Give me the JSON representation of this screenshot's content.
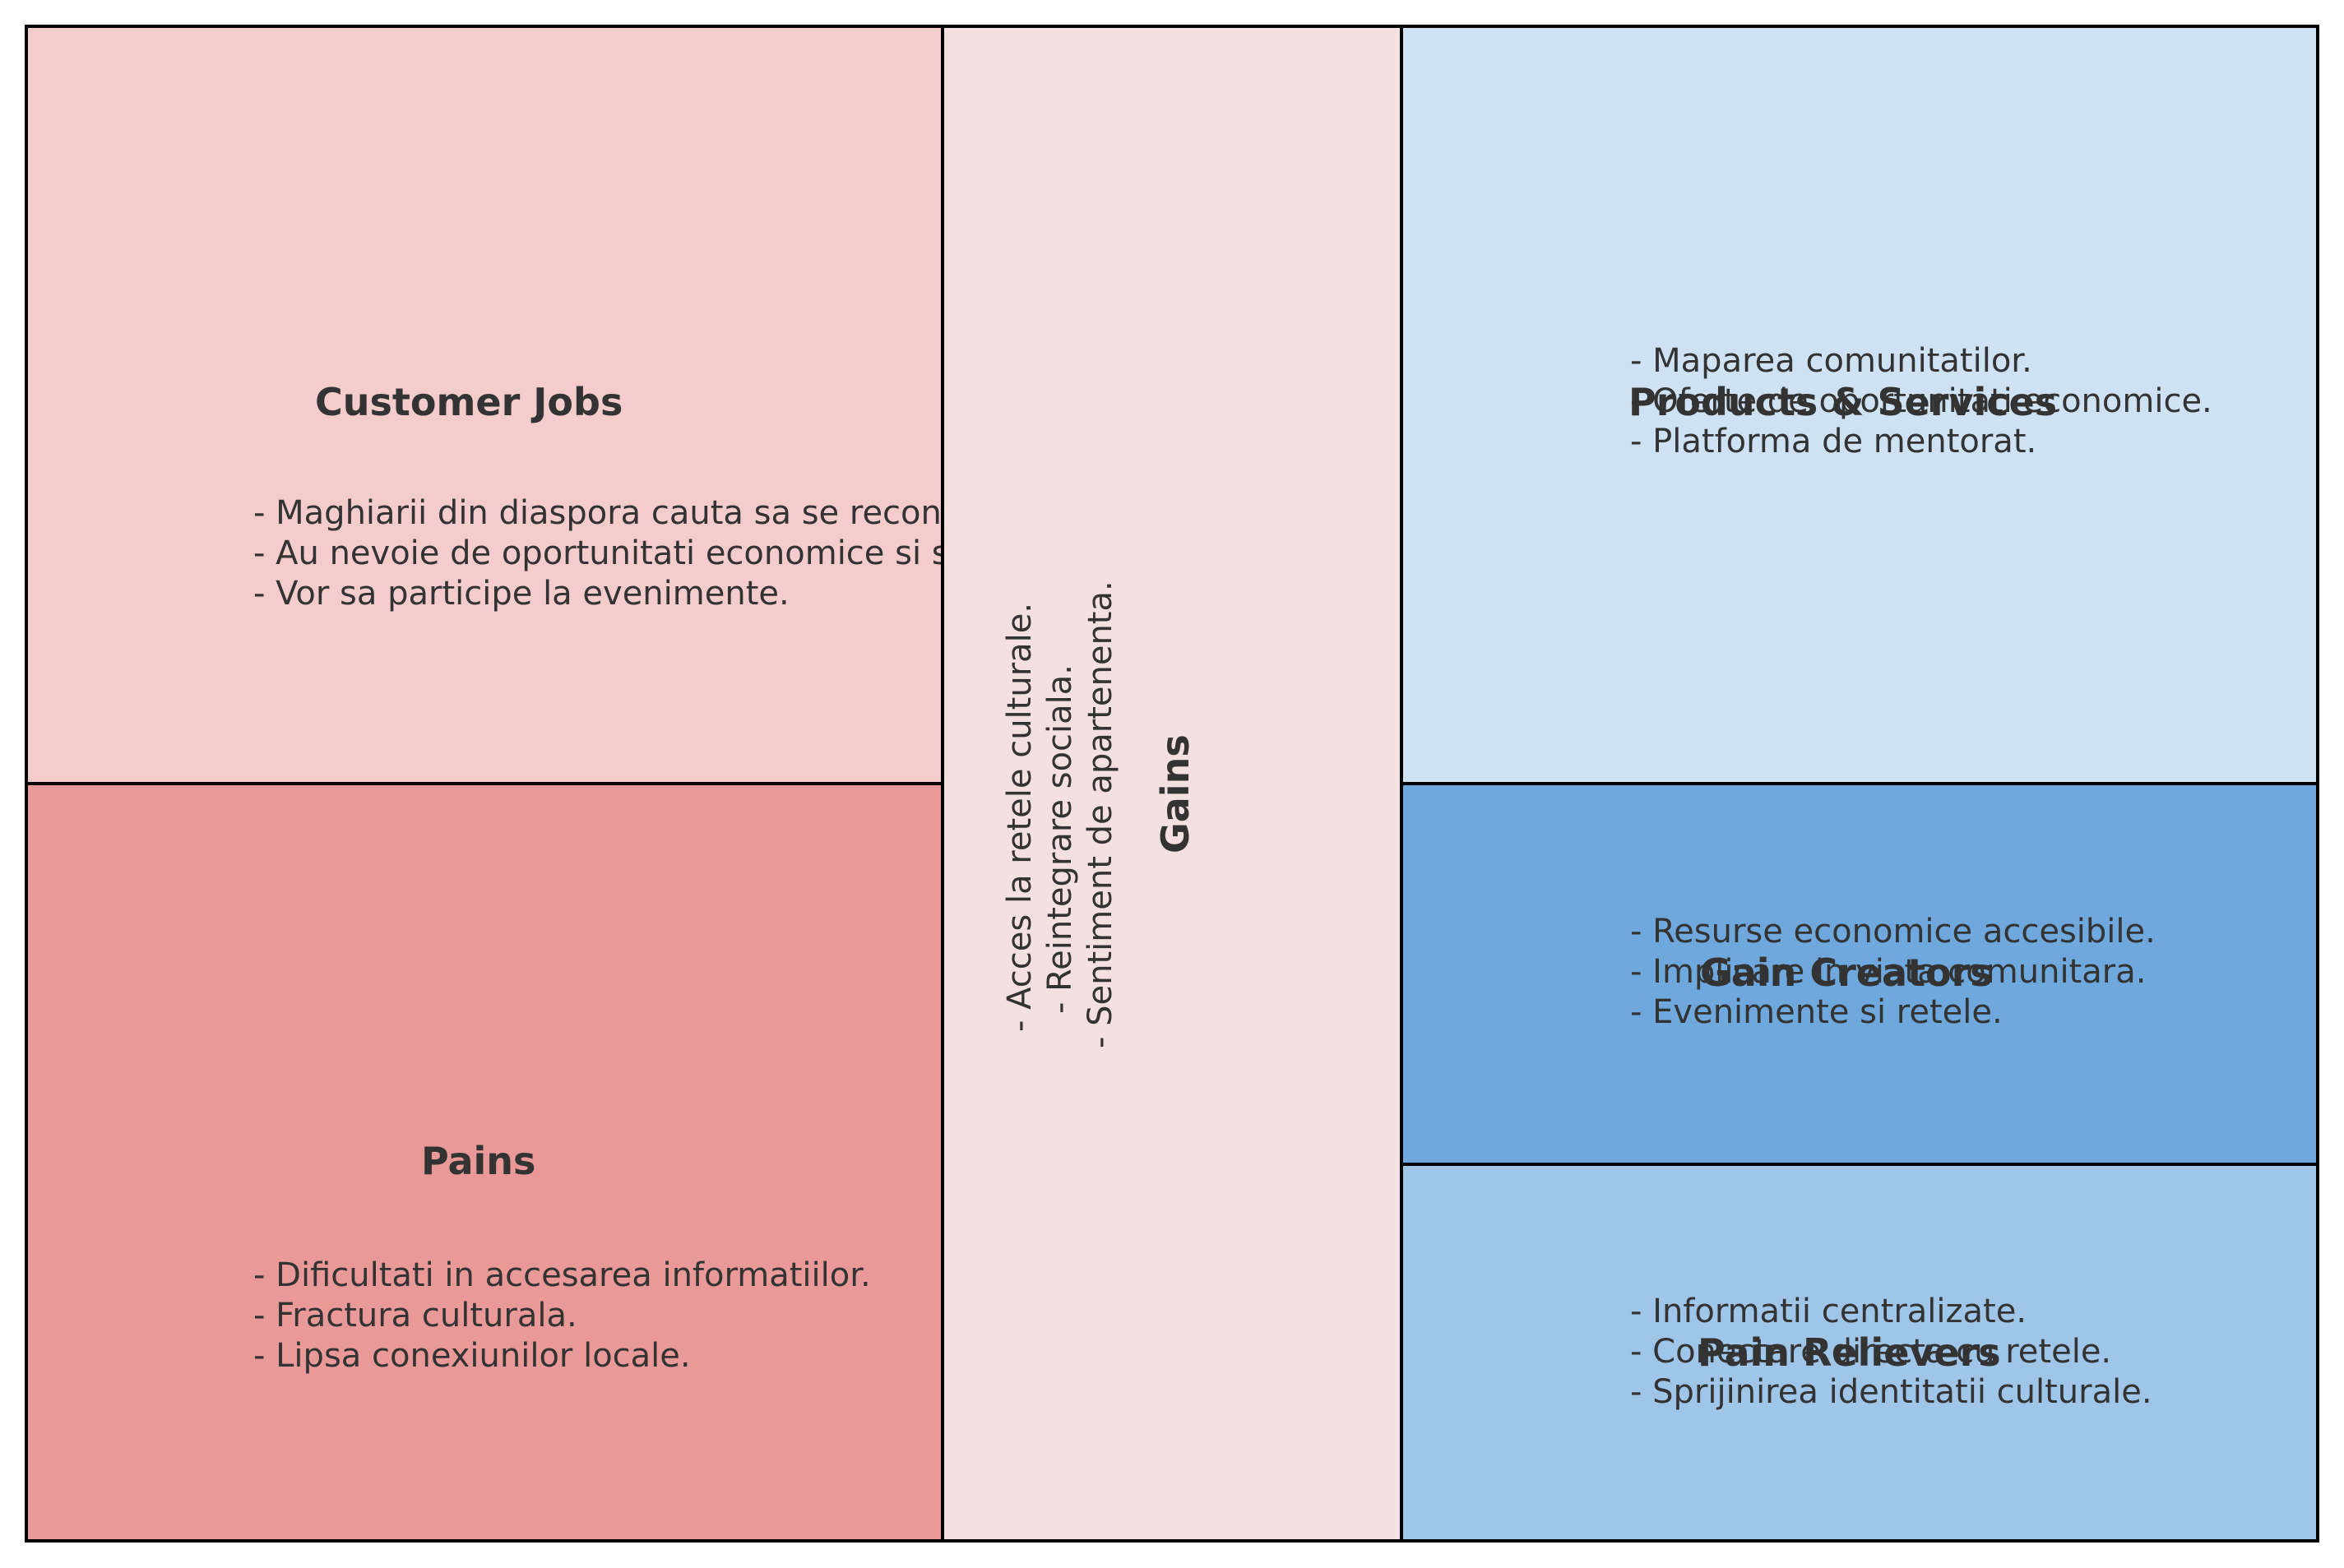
{
  "customer_jobs": {
    "title": "Customer Jobs",
    "color": "#f4cccc",
    "items": [
      "- Maghiarii din diaspora cauta sa se reconecteze.",
      "- Au nevoie de oportunitati economice si sociale.",
      "- Vor sa participe la evenimente."
    ]
  },
  "pains": {
    "title": "Pains",
    "color": "#ea9999",
    "items": [
      "- Dificultati in accesarea informatiilor.",
      "- Fractura culturala.",
      "- Lipsa conexiunilor locale."
    ]
  },
  "gains": {
    "title": "Gains",
    "color": "#f4e0e0",
    "items": [
      "- Acces la retele culturale.",
      "- Reintegrare sociala.",
      "- Sentiment de apartenenta."
    ]
  },
  "products_services": {
    "title": "Products & Services",
    "color": "#cfe2f3",
    "items": [
      "- Maparea comunitatilor.",
      "- Oferte de oportunitati economice.",
      "- Platforma de mentorat."
    ]
  },
  "gain_creators": {
    "title": "Gain Creators",
    "color": "#6fa8dc",
    "items": [
      "- Resurse economice accesibile.",
      "- Implicare in viata comunitara.",
      "- Evenimente si retele."
    ]
  },
  "pain_relievers": {
    "title": "Pain Relievers",
    "color": "#9fc5e8",
    "items": [
      "- Informatii centralizate.",
      "- Conectare directa cu retele.",
      "- Sprijinirea identitatii culturale."
    ]
  }
}
